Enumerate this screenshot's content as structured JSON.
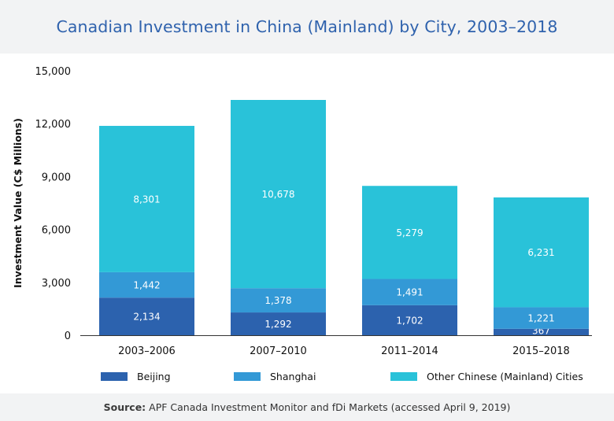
{
  "header": {
    "title": "Canadian Investment in China (Mainland) by City, 2003–2018"
  },
  "footer": {
    "source_label": "Source:",
    "source_text": "APF Canada Investment Monitor and fDi Markets (accessed April 9, 2019)"
  },
  "chart_data": {
    "type": "bar",
    "stacked": true,
    "title": "Canadian Investment in China (Mainland) by City, 2003–2018",
    "xlabel": "",
    "ylabel": "Investment Value (C$ Millions)",
    "ylim": [
      0,
      15000
    ],
    "yticks": [
      0,
      3000,
      6000,
      9000,
      12000,
      15000
    ],
    "ytick_labels": [
      "0",
      "3,000",
      "6,000",
      "9,000",
      "12,000",
      "15,000"
    ],
    "grid": false,
    "legend_position": "bottom",
    "categories": [
      "2003–2006",
      "2007–2010",
      "2011–2014",
      "2015–2018"
    ],
    "series": [
      {
        "name": "Beijing",
        "color": "#2c62ae",
        "values": [
          2134,
          1292,
          1702,
          367
        ],
        "labels": [
          "2,134",
          "1,292",
          "1,702",
          "367"
        ]
      },
      {
        "name": "Shanghai",
        "color": "#3399d6",
        "values": [
          1442,
          1378,
          1491,
          1221
        ],
        "labels": [
          "1,442",
          "1,378",
          "1,491",
          "1,221"
        ]
      },
      {
        "name": "Other Chinese (Mainland) Cities",
        "color": "#29c2d9",
        "values": [
          8301,
          10678,
          5279,
          6231
        ],
        "labels": [
          "8,301",
          "10,678",
          "5,279",
          "6,231"
        ]
      }
    ]
  }
}
